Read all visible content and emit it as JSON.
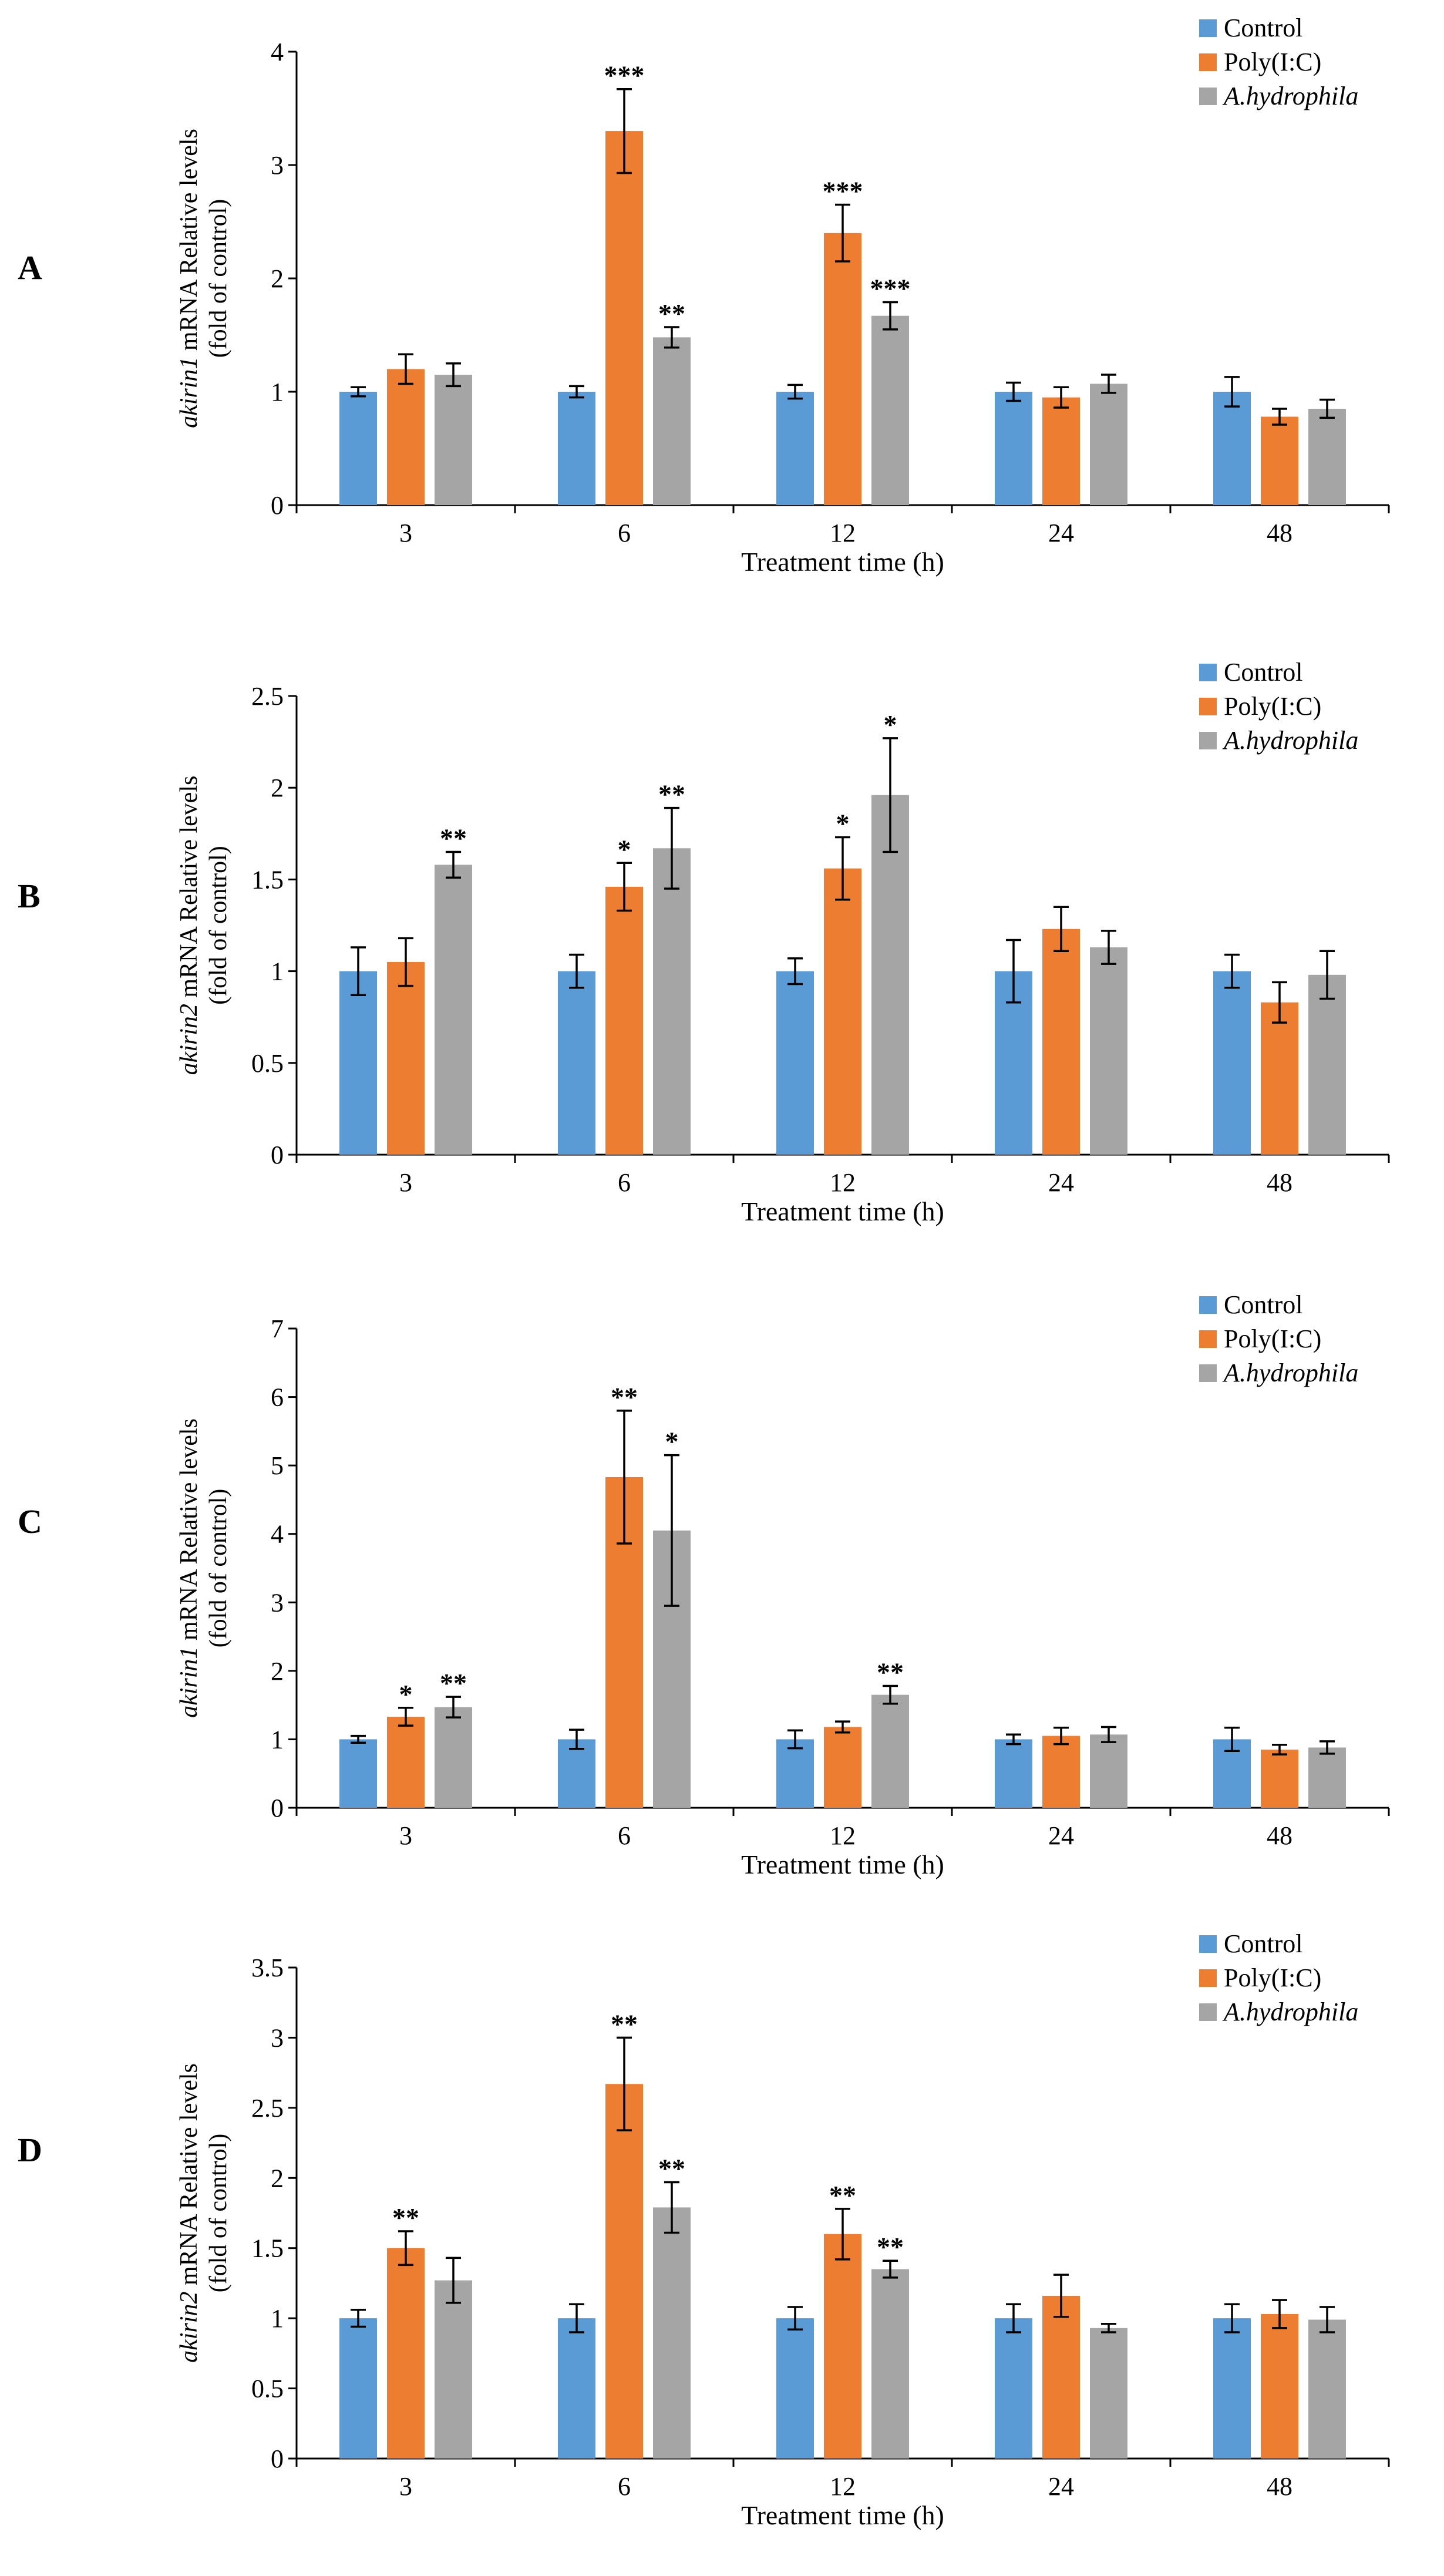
{
  "figure": {
    "colors": {
      "Control": "#5B9BD5",
      "Poly(I:C)": "#ED7D31",
      "A.hydrophila": "#A5A5A5"
    }
  },
  "chart_data": [
    {
      "panel": "A",
      "type": "bar",
      "categories": [
        "3",
        "6",
        "12",
        "24",
        "48"
      ],
      "ylim": [
        0,
        4
      ],
      "yticks": [
        "0",
        "1",
        "2",
        "3",
        "4"
      ],
      "ytick_values": [
        0,
        1,
        2,
        3,
        4
      ],
      "xlabel": "Treatment time (h)",
      "ylabel_gene": "akirin1",
      "ylabel_rest": " mRNA Relative levels",
      "ylabel_line2": "(fold of control)",
      "legend": [
        "Control",
        "Poly(I:C)",
        "A.hydrophila"
      ],
      "series": [
        {
          "name": "Control",
          "values": [
            1.0,
            1.0,
            1.0,
            1.0,
            1.0
          ],
          "errors": [
            0.04,
            0.05,
            0.06,
            0.08,
            0.13
          ],
          "sig": [
            "",
            "",
            "",
            "",
            ""
          ]
        },
        {
          "name": "Poly(I:C)",
          "values": [
            1.2,
            3.3,
            2.4,
            0.95,
            0.78
          ],
          "errors": [
            0.13,
            0.37,
            0.25,
            0.09,
            0.07
          ],
          "sig": [
            "",
            "***",
            "***",
            "",
            ""
          ]
        },
        {
          "name": "A.hydrophila",
          "values": [
            1.15,
            1.48,
            1.67,
            1.07,
            0.85
          ],
          "errors": [
            0.1,
            0.09,
            0.12,
            0.08,
            0.08
          ],
          "sig": [
            "",
            "**",
            "***",
            "",
            ""
          ]
        }
      ]
    },
    {
      "panel": "B",
      "type": "bar",
      "categories": [
        "3",
        "6",
        "12",
        "24",
        "48"
      ],
      "ylim": [
        0,
        2.5
      ],
      "yticks": [
        "0",
        "0.5",
        "1",
        "1.5",
        "2",
        "2.5"
      ],
      "ytick_values": [
        0,
        0.5,
        1,
        1.5,
        2,
        2.5
      ],
      "xlabel": "Treatment time (h)",
      "ylabel_gene": "akirin2",
      "ylabel_rest": " mRNA Relative levels",
      "ylabel_line2": "(fold of control)",
      "legend": [
        "Control",
        "Poly(I:C)",
        "A.hydrophila"
      ],
      "series": [
        {
          "name": "Control",
          "values": [
            1.0,
            1.0,
            1.0,
            1.0,
            1.0
          ],
          "errors": [
            0.13,
            0.09,
            0.07,
            0.17,
            0.09
          ],
          "sig": [
            "",
            "",
            "",
            "",
            ""
          ]
        },
        {
          "name": "Poly(I:C)",
          "values": [
            1.05,
            1.46,
            1.56,
            1.23,
            0.83
          ],
          "errors": [
            0.13,
            0.13,
            0.17,
            0.12,
            0.11
          ],
          "sig": [
            "",
            "*",
            "*",
            "",
            ""
          ]
        },
        {
          "name": "A.hydrophila",
          "values": [
            1.58,
            1.67,
            1.96,
            1.13,
            0.98
          ],
          "errors": [
            0.07,
            0.22,
            0.31,
            0.09,
            0.13
          ],
          "sig": [
            "**",
            "**",
            "*",
            "",
            ""
          ]
        }
      ]
    },
    {
      "panel": "C",
      "type": "bar",
      "categories": [
        "3",
        "6",
        "12",
        "24",
        "48"
      ],
      "ylim": [
        0,
        7
      ],
      "yticks": [
        "0",
        "1",
        "2",
        "3",
        "4",
        "5",
        "6",
        "7"
      ],
      "ytick_values": [
        0,
        1,
        2,
        3,
        4,
        5,
        6,
        7
      ],
      "xlabel": "Treatment time (h)",
      "ylabel_gene": "akirin1",
      "ylabel_rest": " mRNA Relative levels",
      "ylabel_line2": "(fold of control)",
      "legend": [
        "Control",
        "Poly(I:C)",
        "A.hydrophila"
      ],
      "series": [
        {
          "name": "Control",
          "values": [
            1.0,
            1.0,
            1.0,
            1.0,
            1.0
          ],
          "errors": [
            0.05,
            0.14,
            0.13,
            0.07,
            0.17
          ],
          "sig": [
            "",
            "",
            "",
            "",
            ""
          ]
        },
        {
          "name": "Poly(I:C)",
          "values": [
            1.33,
            4.83,
            1.18,
            1.05,
            0.85
          ],
          "errors": [
            0.13,
            0.97,
            0.08,
            0.12,
            0.07
          ],
          "sig": [
            "*",
            "**",
            "",
            "",
            ""
          ]
        },
        {
          "name": "A.hydrophila",
          "values": [
            1.47,
            4.05,
            1.65,
            1.07,
            0.88
          ],
          "errors": [
            0.15,
            1.1,
            0.13,
            0.11,
            0.09
          ],
          "sig": [
            "**",
            "*",
            "**",
            "",
            ""
          ]
        }
      ]
    },
    {
      "panel": "D",
      "type": "bar",
      "categories": [
        "3",
        "6",
        "12",
        "24",
        "48"
      ],
      "ylim": [
        0,
        3.5
      ],
      "yticks": [
        "0",
        "0.5",
        "1",
        "1.5",
        "2",
        "2.5",
        "3",
        "3.5"
      ],
      "ytick_values": [
        0,
        0.5,
        1,
        1.5,
        2,
        2.5,
        3,
        3.5
      ],
      "xlabel": "Treatment time (h)",
      "ylabel_gene": "akirin2",
      "ylabel_rest": " mRNA Relative levels",
      "ylabel_line2": "(fold of control)",
      "legend": [
        "Control",
        "Poly(I:C)",
        "A.hydrophila"
      ],
      "series": [
        {
          "name": "Control",
          "values": [
            1.0,
            1.0,
            1.0,
            1.0,
            1.0
          ],
          "errors": [
            0.06,
            0.1,
            0.08,
            0.1,
            0.1
          ],
          "sig": [
            "",
            "",
            "",
            "",
            ""
          ]
        },
        {
          "name": "Poly(I:C)",
          "values": [
            1.5,
            2.67,
            1.6,
            1.16,
            1.03
          ],
          "errors": [
            0.12,
            0.33,
            0.18,
            0.15,
            0.1
          ],
          "sig": [
            "**",
            "**",
            "**",
            "",
            ""
          ]
        },
        {
          "name": "A.hydrophila",
          "values": [
            1.27,
            1.79,
            1.35,
            0.93,
            0.99
          ],
          "errors": [
            0.16,
            0.18,
            0.06,
            0.03,
            0.09
          ],
          "sig": [
            "",
            "**",
            "**",
            "",
            ""
          ]
        }
      ]
    }
  ]
}
